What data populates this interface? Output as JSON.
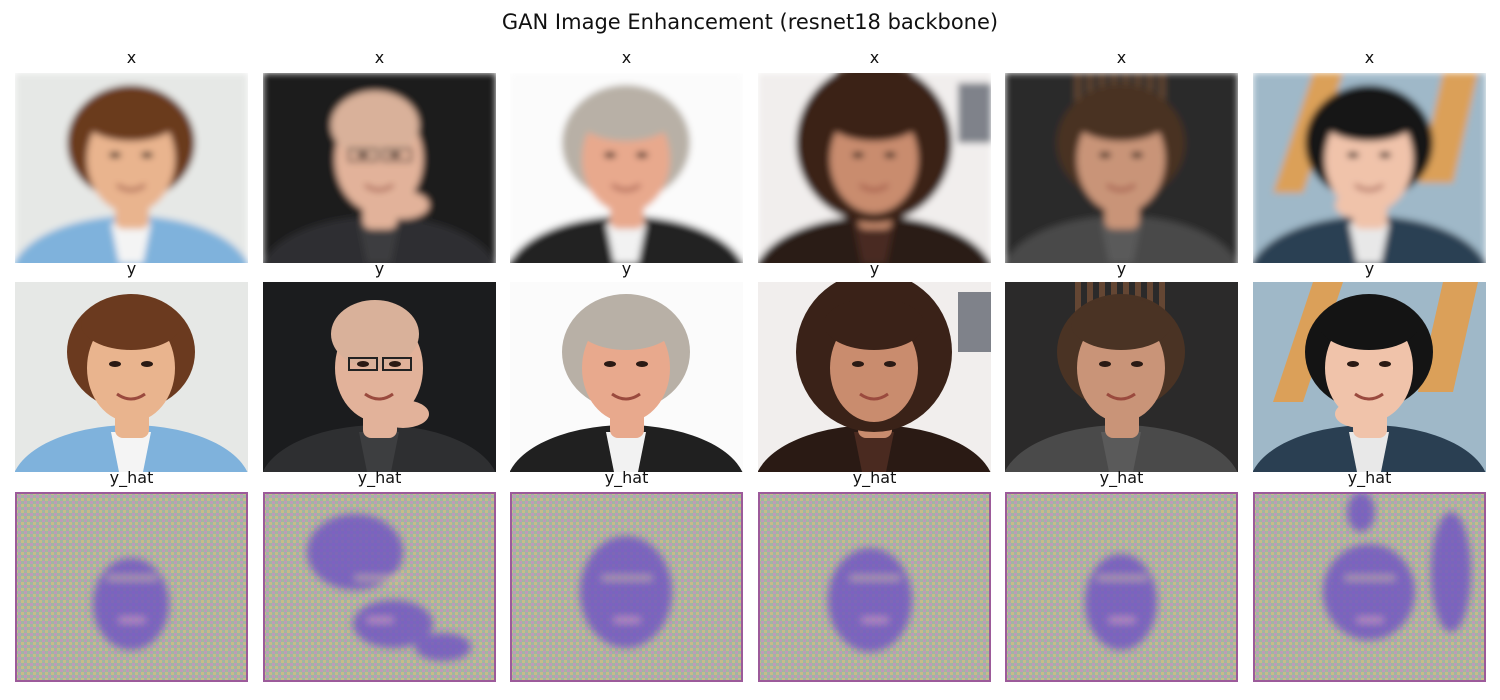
{
  "figure": {
    "title": "GAN Image Enhancement (resnet18 backbone)"
  },
  "rows": [
    {
      "key": "x",
      "label": "x",
      "kind": "blurry",
      "images": [
        {
          "subject": "young-man-brown-hair"
        },
        {
          "subject": "bald-man-glasses"
        },
        {
          "subject": "older-man-gray-hair"
        },
        {
          "subject": "woman-dark-hair"
        },
        {
          "subject": "young-man-short-hair"
        },
        {
          "subject": "man-hand-on-chin"
        }
      ]
    },
    {
      "key": "y",
      "label": "y",
      "kind": "sharp",
      "images": [
        {
          "subject": "young-man-brown-hair"
        },
        {
          "subject": "bald-man-glasses"
        },
        {
          "subject": "older-man-gray-hair"
        },
        {
          "subject": "woman-dark-hair"
        },
        {
          "subject": "young-man-short-hair"
        },
        {
          "subject": "man-hand-on-chin"
        }
      ]
    },
    {
      "key": "y_hat",
      "label": "y_hat",
      "kind": "generated",
      "images": [
        {
          "subject": "generated-noise"
        },
        {
          "subject": "generated-noise"
        },
        {
          "subject": "generated-noise"
        },
        {
          "subject": "generated-noise"
        },
        {
          "subject": "generated-noise"
        },
        {
          "subject": "generated-noise"
        }
      ]
    }
  ],
  "palette": [
    {
      "bg": "#e6e8e6",
      "hair": "#6b3a1f",
      "skin": "#e9b48e",
      "cloth": "#7fb2dc",
      "shirt": "#f4f4f4"
    },
    {
      "bg": "#1b1c1e",
      "hair": "#d9b19a",
      "skin": "#e2b29a",
      "cloth": "#2e2f31",
      "shirt": "#3d3e40"
    },
    {
      "bg": "#fbfbfb",
      "hair": "#b8b0a6",
      "skin": "#e8a98d",
      "cloth": "#202020",
      "shirt": "#f2f2f2"
    },
    {
      "bg": "#f1eeed",
      "hair": "#3a2218",
      "skin": "#c98c6e",
      "cloth": "#2a1a14",
      "shirt": "#4a2a20"
    },
    {
      "bg": "#2b2a2a",
      "hair": "#4a3324",
      "skin": "#c99478",
      "cloth": "#4a4a4a",
      "shirt": "#5a5a5a"
    },
    {
      "bg": "#9fb8c8",
      "hair": "#141414",
      "skin": "#f0c3aa",
      "cloth": "#2a3f52",
      "shirt": "#e8e8e8"
    }
  ],
  "generated_colors": {
    "noise_a": "#c9b98a",
    "noise_b": "#9fb6a2",
    "noise_c": "#c19ab8",
    "face": "#6f55c2"
  }
}
